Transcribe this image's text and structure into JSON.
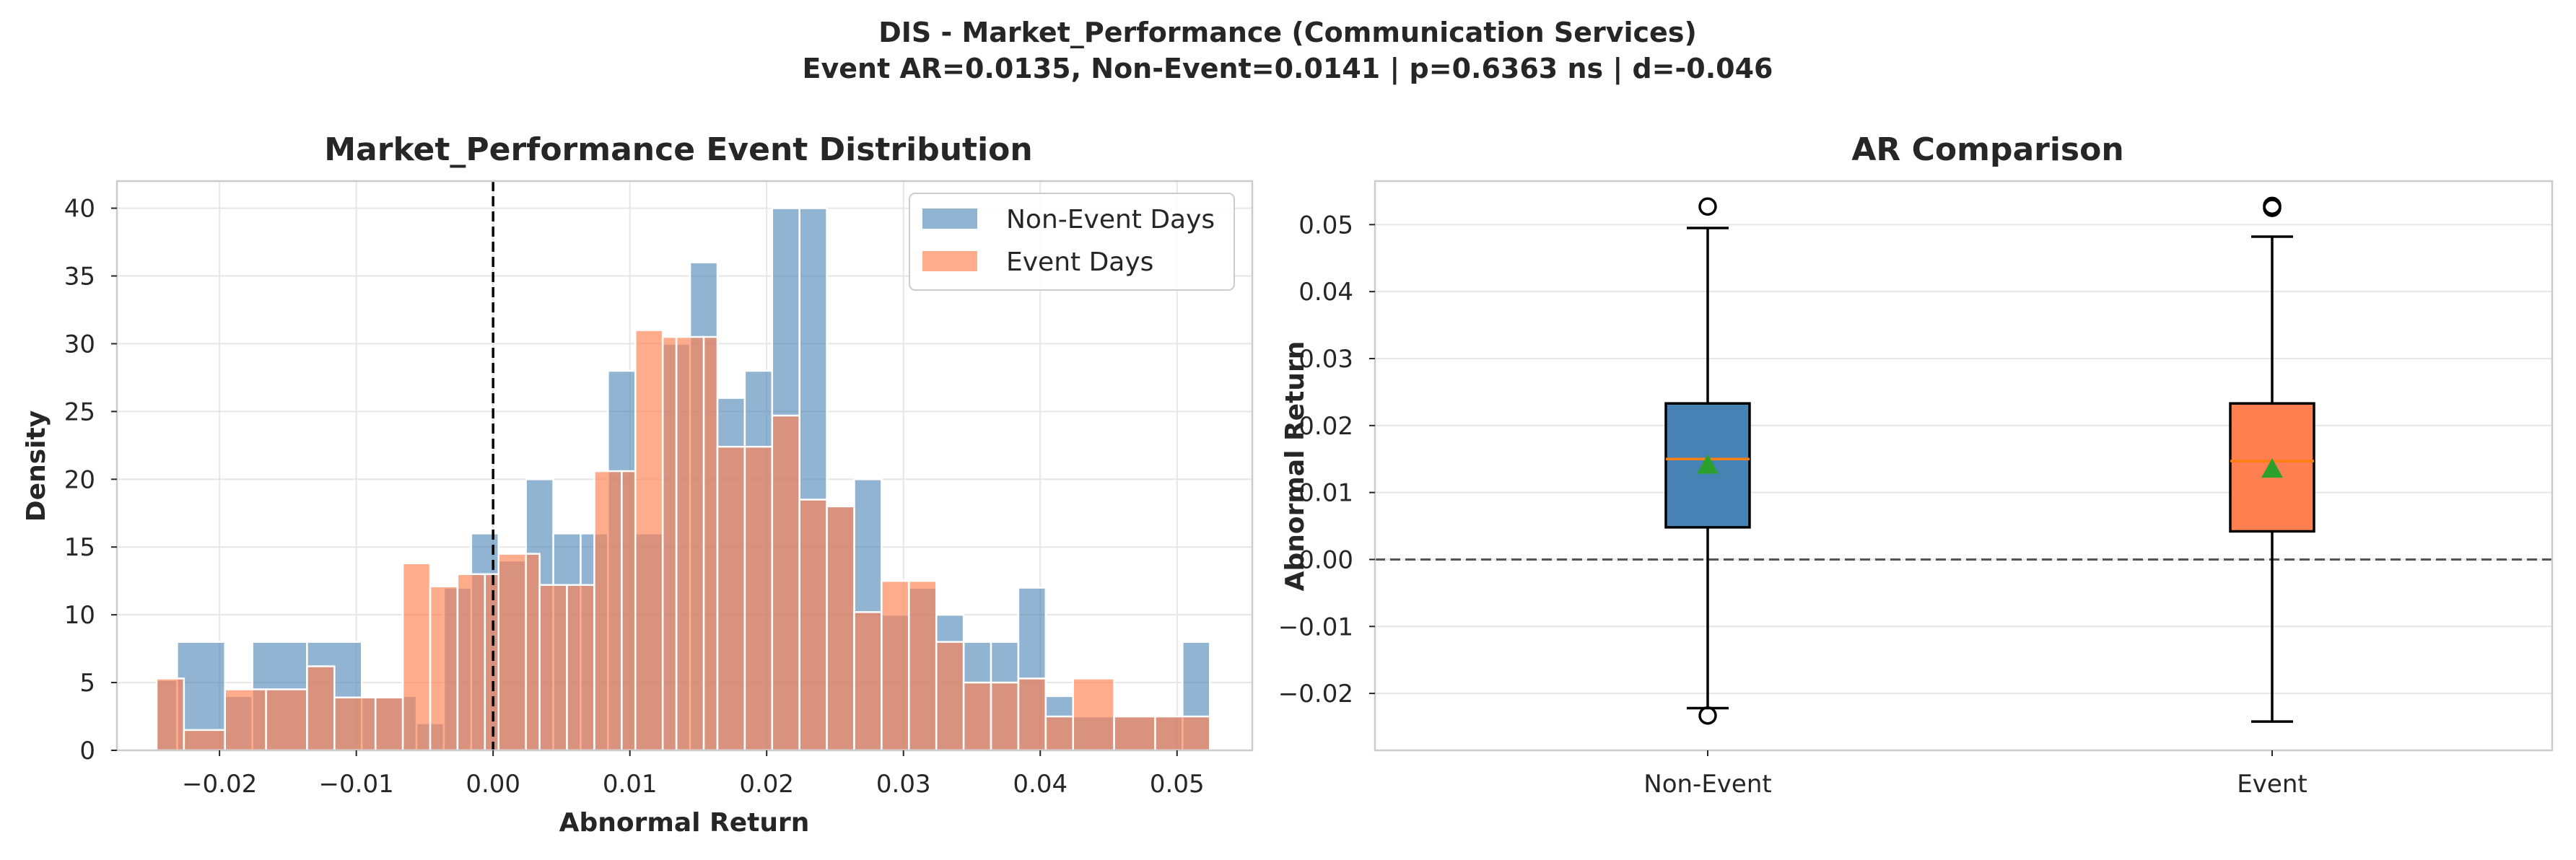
{
  "figure": {
    "title_line1": "DIS - Market_Performance (Communication Services)",
    "title_line2": "Event AR=0.0135, Non-Event=0.0141 | p=0.6363 ns | d=-0.046"
  },
  "colors": {
    "non_event": "#4682b4",
    "event": "#ff7f50",
    "median": "#ff7f0e",
    "mean_marker": "#2ca02c",
    "grid": "#e6e6e6",
    "spine": "#cccccc",
    "zero_line": "#000000",
    "ref_line": "#555555"
  },
  "chart_data": [
    {
      "type": "histogram",
      "title": "Market_Performance Event Distribution",
      "xlabel": "Abnormal Return",
      "ylabel": "Density",
      "xlim": [
        -0.0275,
        0.0555
      ],
      "ylim": [
        0,
        42
      ],
      "xticks": [
        -0.02,
        -0.01,
        0.0,
        0.01,
        0.02,
        0.03,
        0.04,
        0.05
      ],
      "xtick_labels": [
        "−0.02",
        "−0.01",
        "0.00",
        "0.01",
        "0.02",
        "0.03",
        "0.04",
        "0.05"
      ],
      "yticks": [
        0,
        5,
        10,
        15,
        20,
        25,
        30,
        35,
        40
      ],
      "grid": true,
      "vline_x": 0.0,
      "legend_position": "upper right",
      "series": [
        {
          "name": "Non-Event Days",
          "color_key": "non_event",
          "bins": [
            {
              "x0": -0.0246,
              "x1": -0.0231,
              "v": 5.2
            },
            {
              "x0": -0.0231,
              "x1": -0.0196,
              "v": 8.0
            },
            {
              "x0": -0.0196,
              "x1": -0.0176,
              "v": 4.0
            },
            {
              "x0": -0.0176,
              "x1": -0.0136,
              "v": 8.0
            },
            {
              "x0": -0.0136,
              "x1": -0.0096,
              "v": 8.0
            },
            {
              "x0": -0.0096,
              "x1": -0.0056,
              "v": 4.0
            },
            {
              "x0": -0.0056,
              "x1": -0.0036,
              "v": 2.0
            },
            {
              "x0": -0.0036,
              "x1": -0.0016,
              "v": 12.0
            },
            {
              "x0": -0.0016,
              "x1": 0.0004,
              "v": 16.0
            },
            {
              "x0": 0.0004,
              "x1": 0.0024,
              "v": 14.0
            },
            {
              "x0": 0.0024,
              "x1": 0.0044,
              "v": 20.0
            },
            {
              "x0": 0.0044,
              "x1": 0.0064,
              "v": 16.0
            },
            {
              "x0": 0.0064,
              "x1": 0.0084,
              "v": 16.0
            },
            {
              "x0": 0.0084,
              "x1": 0.0104,
              "v": 28.0
            },
            {
              "x0": 0.0104,
              "x1": 0.0124,
              "v": 16.0
            },
            {
              "x0": 0.0124,
              "x1": 0.0144,
              "v": 30.0
            },
            {
              "x0": 0.0144,
              "x1": 0.0164,
              "v": 36.0
            },
            {
              "x0": 0.0164,
              "x1": 0.0184,
              "v": 26.0
            },
            {
              "x0": 0.0184,
              "x1": 0.0204,
              "v": 28.0
            },
            {
              "x0": 0.0204,
              "x1": 0.0224,
              "v": 40.0
            },
            {
              "x0": 0.0224,
              "x1": 0.0244,
              "v": 40.0
            },
            {
              "x0": 0.0244,
              "x1": 0.0264,
              "v": 18.0
            },
            {
              "x0": 0.0264,
              "x1": 0.0284,
              "v": 20.0
            },
            {
              "x0": 0.0284,
              "x1": 0.0304,
              "v": 10.0
            },
            {
              "x0": 0.0304,
              "x1": 0.0324,
              "v": 12.0
            },
            {
              "x0": 0.0324,
              "x1": 0.0344,
              "v": 10.0
            },
            {
              "x0": 0.0344,
              "x1": 0.0364,
              "v": 8.0
            },
            {
              "x0": 0.0364,
              "x1": 0.0384,
              "v": 8.0
            },
            {
              "x0": 0.0384,
              "x1": 0.0404,
              "v": 12.0
            },
            {
              "x0": 0.0404,
              "x1": 0.0424,
              "v": 4.0
            },
            {
              "x0": 0.0424,
              "x1": 0.0504,
              "v": 2.5
            },
            {
              "x0": 0.0504,
              "x1": 0.0524,
              "v": 8.0
            }
          ]
        },
        {
          "name": "Event Days",
          "color_key": "event",
          "bins": [
            {
              "x0": -0.0246,
              "x1": -0.0226,
              "v": 5.3
            },
            {
              "x0": -0.0226,
              "x1": -0.0196,
              "v": 1.5
            },
            {
              "x0": -0.0196,
              "x1": -0.0166,
              "v": 4.5
            },
            {
              "x0": -0.0166,
              "x1": -0.0136,
              "v": 4.5
            },
            {
              "x0": -0.0136,
              "x1": -0.0116,
              "v": 6.2
            },
            {
              "x0": -0.0116,
              "x1": -0.0086,
              "v": 3.9
            },
            {
              "x0": -0.0086,
              "x1": -0.0066,
              "v": 3.9
            },
            {
              "x0": -0.0066,
              "x1": -0.0046,
              "v": 13.8
            },
            {
              "x0": -0.0046,
              "x1": -0.0026,
              "v": 12.1
            },
            {
              "x0": -0.0026,
              "x1": -0.0006,
              "v": 13.0
            },
            {
              "x0": -0.0006,
              "x1": 0.0004,
              "v": 13.0
            },
            {
              "x0": 0.0004,
              "x1": 0.0024,
              "v": 14.5
            },
            {
              "x0": 0.0024,
              "x1": 0.0034,
              "v": 14.5
            },
            {
              "x0": 0.0034,
              "x1": 0.0054,
              "v": 12.2
            },
            {
              "x0": 0.0054,
              "x1": 0.0074,
              "v": 12.2
            },
            {
              "x0": 0.0074,
              "x1": 0.0094,
              "v": 20.6
            },
            {
              "x0": 0.0094,
              "x1": 0.0104,
              "v": 20.6
            },
            {
              "x0": 0.0104,
              "x1": 0.0124,
              "v": 31.0
            },
            {
              "x0": 0.0124,
              "x1": 0.0134,
              "v": 30.5
            },
            {
              "x0": 0.0134,
              "x1": 0.0154,
              "v": 30.5
            },
            {
              "x0": 0.0154,
              "x1": 0.0164,
              "v": 30.5
            },
            {
              "x0": 0.0164,
              "x1": 0.0184,
              "v": 22.4
            },
            {
              "x0": 0.0184,
              "x1": 0.0204,
              "v": 22.4
            },
            {
              "x0": 0.0204,
              "x1": 0.0224,
              "v": 24.7
            },
            {
              "x0": 0.0224,
              "x1": 0.0244,
              "v": 18.5
            },
            {
              "x0": 0.0244,
              "x1": 0.0264,
              "v": 18.0
            },
            {
              "x0": 0.0264,
              "x1": 0.0284,
              "v": 10.2
            },
            {
              "x0": 0.0284,
              "x1": 0.0304,
              "v": 12.5
            },
            {
              "x0": 0.0304,
              "x1": 0.0324,
              "v": 12.5
            },
            {
              "x0": 0.0324,
              "x1": 0.0344,
              "v": 8.0
            },
            {
              "x0": 0.0344,
              "x1": 0.0364,
              "v": 5.0
            },
            {
              "x0": 0.0364,
              "x1": 0.0384,
              "v": 5.0
            },
            {
              "x0": 0.0384,
              "x1": 0.0404,
              "v": 5.3
            },
            {
              "x0": 0.0404,
              "x1": 0.0424,
              "v": 2.5
            },
            {
              "x0": 0.0424,
              "x1": 0.0454,
              "v": 5.3
            },
            {
              "x0": 0.0454,
              "x1": 0.0484,
              "v": 2.5
            },
            {
              "x0": 0.0484,
              "x1": 0.0524,
              "v": 2.5
            }
          ]
        }
      ]
    },
    {
      "type": "box",
      "title": "AR Comparison",
      "xlabel": "",
      "ylabel": "Abnormal Return",
      "ylim": [
        -0.0285,
        0.0565
      ],
      "yticks": [
        -0.02,
        -0.01,
        0.0,
        0.01,
        0.02,
        0.03,
        0.04,
        0.05
      ],
      "ytick_labels": [
        "−0.02",
        "−0.01",
        "0.00",
        "0.01",
        "0.02",
        "0.03",
        "0.04",
        "0.05"
      ],
      "grid": true,
      "hline_y": 0.0,
      "categories": [
        "Non-Event",
        "Event"
      ],
      "boxes": [
        {
          "category": "Non-Event",
          "color_key": "non_event",
          "q1": 0.0048,
          "median": 0.015,
          "q3": 0.0233,
          "whisker_low": -0.0222,
          "whisker_high": 0.0495,
          "mean": 0.0141,
          "outliers": [
            0.0527,
            -0.0233
          ]
        },
        {
          "category": "Event",
          "color_key": "event",
          "q1": 0.0042,
          "median": 0.0147,
          "q3": 0.0233,
          "whisker_low": -0.0242,
          "whisker_high": 0.0482,
          "mean": 0.0135,
          "outliers": [
            0.0528,
            0.0525
          ]
        }
      ]
    }
  ]
}
